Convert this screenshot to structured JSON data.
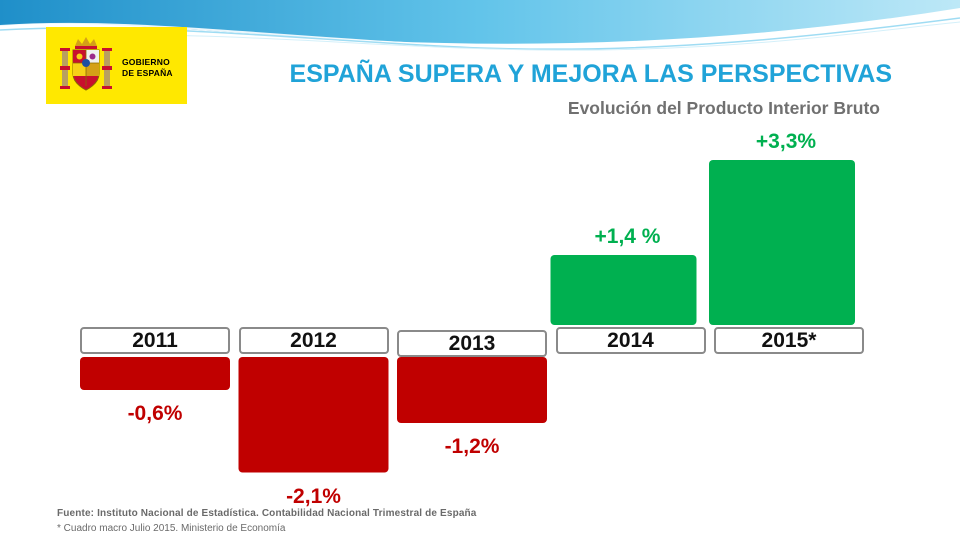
{
  "colors": {
    "negative": "#c00000",
    "positive": "#00b050",
    "title": "#20a3d8",
    "subtitle": "#707070",
    "logo_bg": "#ffe800"
  },
  "logo": {
    "line1": "GOBIERNO",
    "line2": "DE ESPAÑA"
  },
  "header": {
    "title": "ESPAÑA SUPERA Y MEJORA LAS PERSPECTIVAS",
    "subtitle": "Evolución del Producto Interior Bruto"
  },
  "chart_data": {
    "type": "bar",
    "title": "Evolución del Producto Interior Bruto",
    "xlabel": "",
    "ylabel": "",
    "categories": [
      "2011",
      "2012",
      "2013",
      "2014",
      "2015*"
    ],
    "values": [
      -0.6,
      -2.1,
      -1.2,
      1.4,
      3.3
    ],
    "labels": [
      "-0,6%",
      "-2,1%",
      "-1,2%",
      "+1,4 %",
      "+3,3%"
    ],
    "unit": "%"
  },
  "source": {
    "line1": "Fuente: Instituto Nacional de Estadística. Contabilidad Nacional Trimestral de España",
    "line2": "* Cuadro macro Julio 2015. Ministerio de Economía"
  }
}
